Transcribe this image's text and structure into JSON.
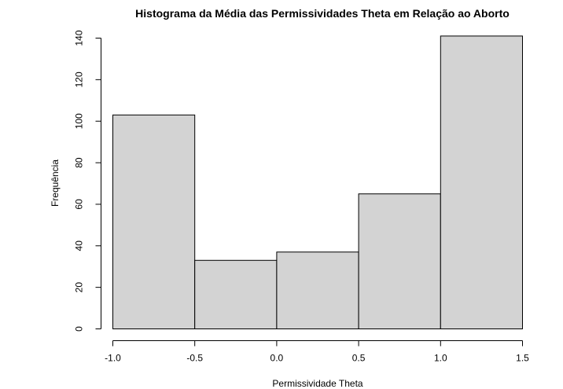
{
  "chart_data": {
    "type": "bar",
    "title": "Histograma da Média das Permissividades Theta em Relação ao Aborto",
    "xlabel": "Permissividade Theta",
    "ylabel": "Frequência",
    "bins": [
      {
        "from": -1.0,
        "to": -0.5,
        "count": 103
      },
      {
        "from": -0.5,
        "to": 0.0,
        "count": 33
      },
      {
        "from": 0.0,
        "to": 0.5,
        "count": 37
      },
      {
        "from": 0.5,
        "to": 1.0,
        "count": 65
      },
      {
        "from": 1.0,
        "to": 1.5,
        "count": 141
      }
    ],
    "xlim": [
      -1.0,
      1.5
    ],
    "ylim": [
      0,
      140
    ],
    "x_ticks": [
      "-1.0",
      "-0.5",
      "0.0",
      "0.5",
      "1.0",
      "1.5"
    ],
    "y_ticks": [
      "0",
      "20",
      "40",
      "60",
      "80",
      "100",
      "120",
      "140"
    ],
    "grid": false,
    "colors": {
      "bar_fill": "#d3d3d3",
      "bar_stroke": "#000000"
    }
  }
}
